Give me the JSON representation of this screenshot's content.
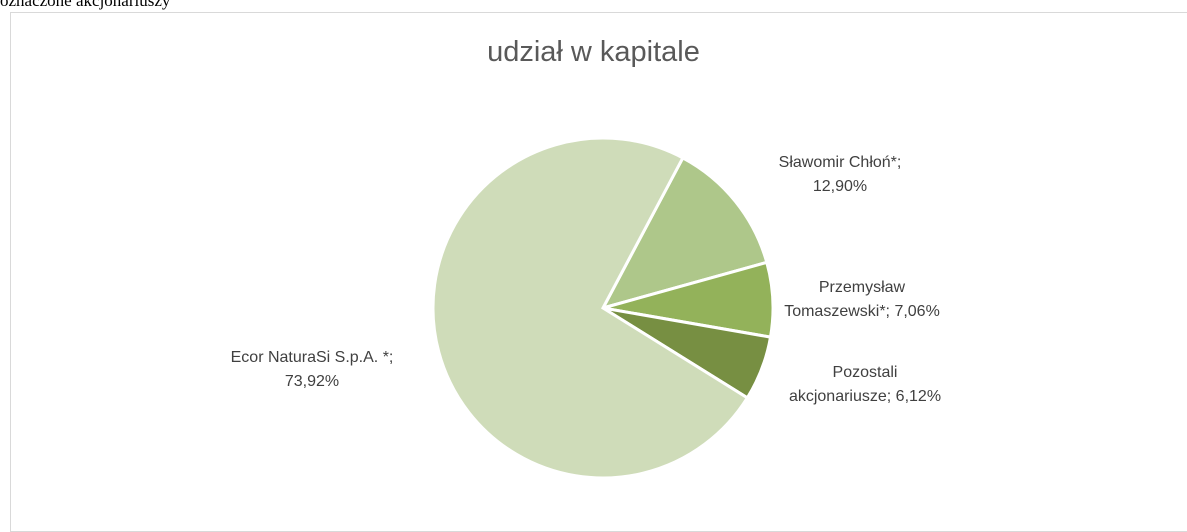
{
  "caption": "oznaczone akcjonariuszy",
  "chart_data": {
    "type": "pie",
    "title": "udział w kapitale",
    "start_angle": 28,
    "values": [
      12.9,
      7.06,
      6.12,
      73.92
    ],
    "value_labels": [
      "Sławomir Chłoń*; 12,90%",
      "Przemysław Tomaszewski*; 7,06%",
      "Pozostali akcjonariusze; 6,12%",
      "Ecor NaturaSi S.p.A. *; 73,92%"
    ],
    "colors": [
      "#aec78a",
      "#93b25a",
      "#778f42",
      "#cfdcb9"
    ]
  }
}
